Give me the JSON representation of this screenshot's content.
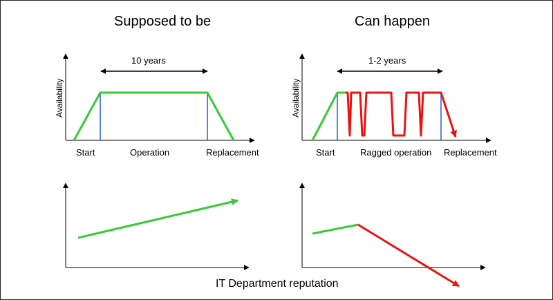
{
  "left_panel": {
    "title": "Supposed to be",
    "duration_label": "10 years",
    "y_axis_label": "Availability",
    "phase_labels": {
      "start": "Start",
      "middle": "Operation",
      "end": "Replacement"
    }
  },
  "right_panel": {
    "title": "Can happen",
    "duration_label": "1-2 years",
    "y_axis_label": "Availability",
    "phase_labels": {
      "start": "Start",
      "middle": "Ragged operation",
      "end": "Replacement"
    }
  },
  "bottom_label": "IT Department reputation",
  "colors": {
    "availability_normal": "#33cc33",
    "availability_failure": "#ee1111",
    "phase_marker": "#1f5fd6",
    "axis": "#000000"
  }
}
